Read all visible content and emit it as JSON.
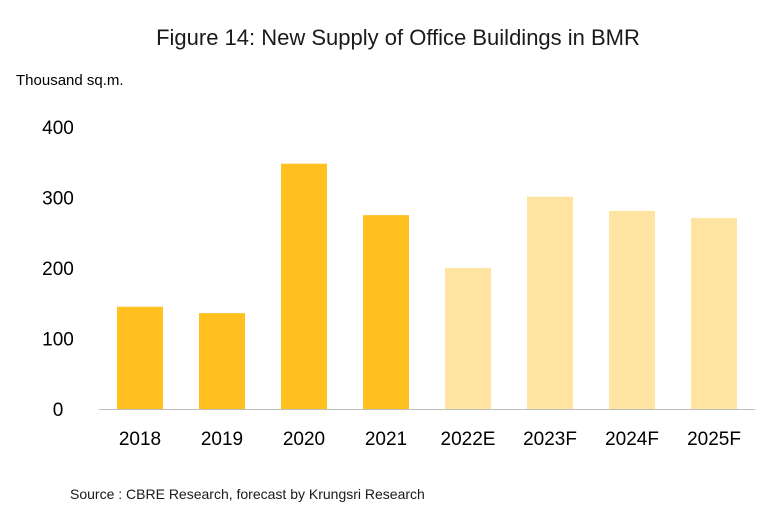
{
  "chart_data": {
    "type": "bar",
    "title": "Figure 14: New Supply of Office Buildings in BMR",
    "ylabel": "Thousand sq.m.",
    "xlabel": "",
    "categories": [
      "2018",
      "2019",
      "2020",
      "2021",
      "2022E",
      "2023F",
      "2024F",
      "2025F"
    ],
    "values": [
      145,
      136,
      348,
      275,
      200,
      301,
      281,
      271
    ],
    "kinds": [
      "actual",
      "actual",
      "actual",
      "actual",
      "forecast",
      "forecast",
      "forecast",
      "forecast"
    ],
    "ylim": [
      0,
      400
    ],
    "yticks": [
      "0",
      "100",
      "200",
      "300",
      "400"
    ],
    "grid": false,
    "legend": "none",
    "source": "Source : CBRE Research, forecast by Krungsri Research"
  },
  "colors": {
    "actual": "#FFC020",
    "forecast": "#FFE3A0",
    "axis": "#BFBFBF"
  }
}
